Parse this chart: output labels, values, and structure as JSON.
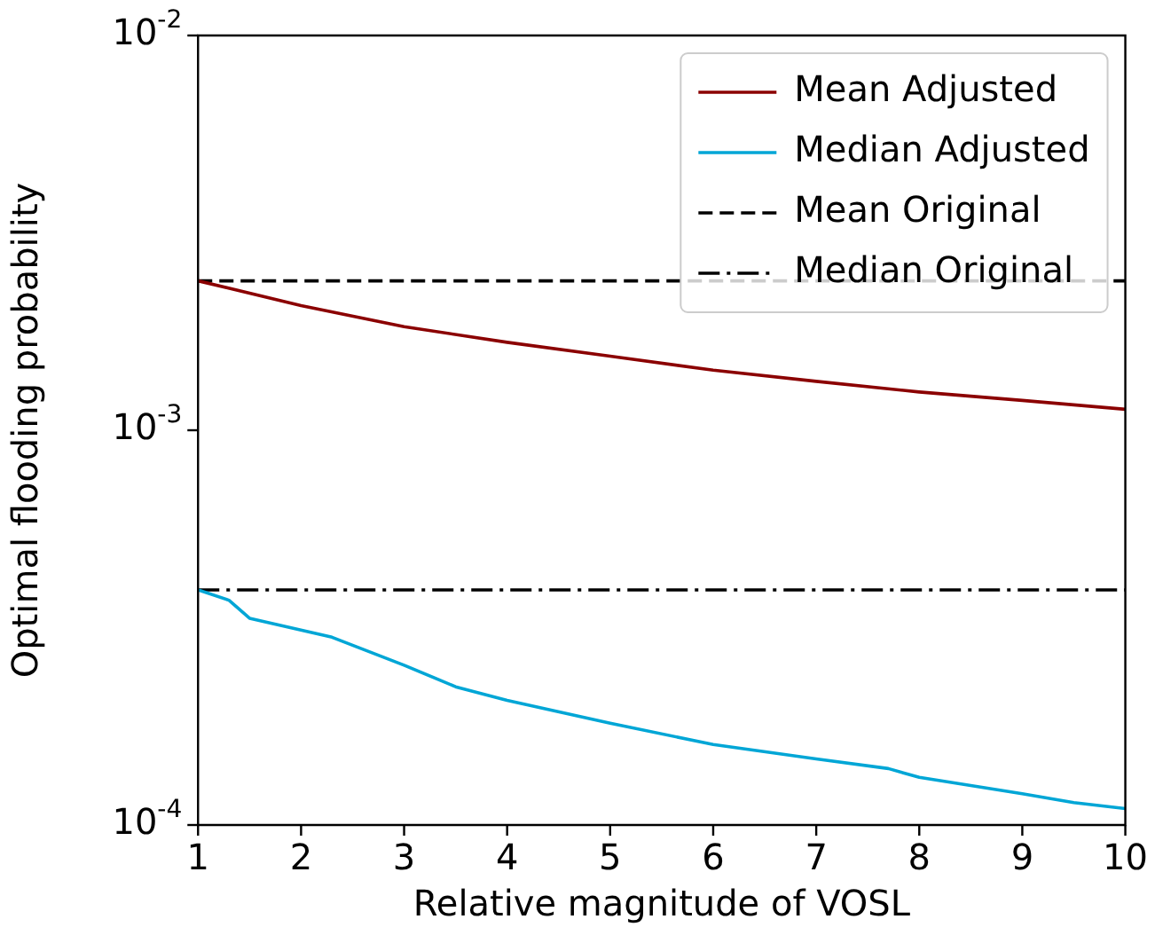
{
  "chart_data": {
    "type": "line",
    "xlabel": "Relative magnitude of VOSL",
    "ylabel": "Optimal flooding probability",
    "log": "y",
    "xlim": [
      1,
      10
    ],
    "xticks": [
      1,
      2,
      3,
      4,
      5,
      6,
      7,
      8,
      9,
      10
    ],
    "ylim": [
      0.0001,
      0.01
    ],
    "yticks": [
      {
        "value": 0.01,
        "label": "10$^{-2}$"
      },
      {
        "value": 0.001,
        "label": "10$^{-3}$"
      },
      {
        "value": 0.0001,
        "label": "10$^{-4}$"
      }
    ],
    "grid": false,
    "legend": "top right",
    "marker": "none",
    "series": [
      {
        "name": "Mean Adjusted",
        "color": "#8b0000",
        "line_style": "solid",
        "x": [
          1,
          2,
          3,
          4,
          5,
          6,
          7,
          8,
          9,
          10
        ],
        "values": [
          0.00239,
          0.00207,
          0.00183,
          0.00167,
          0.00154,
          0.00142,
          0.00133,
          0.00125,
          0.00119,
          0.00113
        ]
      },
      {
        "name": "Median Adjusted",
        "color": "#00a6d6",
        "line_style": "solid",
        "x": [
          1,
          1.3,
          1.5,
          2.3,
          3,
          3.5,
          4,
          5,
          6,
          7,
          7.7,
          8,
          9,
          9.5,
          10
        ],
        "values": [
          0.000394,
          0.000371,
          0.000334,
          0.000299,
          0.000254,
          0.000224,
          0.000207,
          0.000181,
          0.00016,
          0.000147,
          0.000139,
          0.000132,
          0.00012,
          0.000114,
          0.00011
        ]
      },
      {
        "name": "Mean Original",
        "color": "#000000",
        "line_style": "dashed",
        "x": [
          1,
          10
        ],
        "values": [
          0.00239,
          0.00239
        ]
      },
      {
        "name": "Median Original",
        "color": "#000000",
        "line_style": "dashdot",
        "x": [
          1,
          10
        ],
        "values": [
          0.000394,
          0.000394
        ]
      }
    ]
  }
}
